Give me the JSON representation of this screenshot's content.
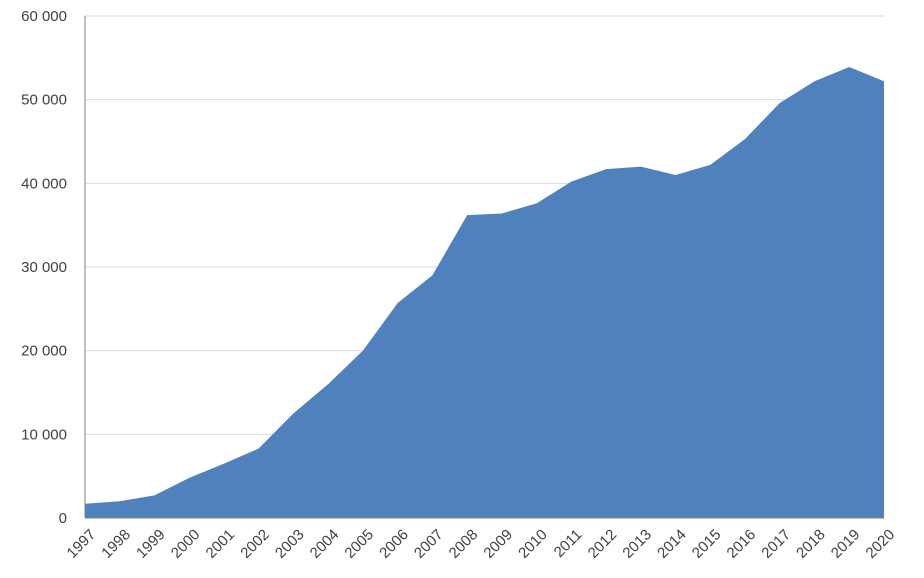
{
  "chart_data": {
    "type": "area",
    "color": "#4f81bd",
    "grid": true,
    "categories": [
      "1997",
      "1998",
      "1999",
      "2000",
      "2001",
      "2002",
      "2003",
      "2004",
      "2005",
      "2006",
      "2007",
      "2008",
      "2009",
      "2010",
      "2011",
      "2012",
      "2013",
      "2014",
      "2015",
      "2016",
      "2017",
      "2018",
      "2019",
      "2020"
    ],
    "values": [
      1700,
      2000,
      2700,
      4800,
      6500,
      8300,
      12500,
      16000,
      20000,
      25700,
      29000,
      36200,
      36400,
      37600,
      40200,
      41700,
      42000,
      41000,
      42200,
      45300,
      49600,
      52200,
      53900,
      52200
    ],
    "ylim": [
      0,
      60000
    ],
    "yticks": [
      0,
      {
        "value": 10000,
        "label": "10 000"
      },
      {
        "value": 20000,
        "label": "20 000"
      },
      {
        "value": 30000,
        "label": "30 000"
      },
      {
        "value": 40000,
        "label": "40 000"
      },
      {
        "value": 50000,
        "label": "50 000"
      },
      {
        "value": 60000,
        "label": "60 000"
      }
    ]
  }
}
